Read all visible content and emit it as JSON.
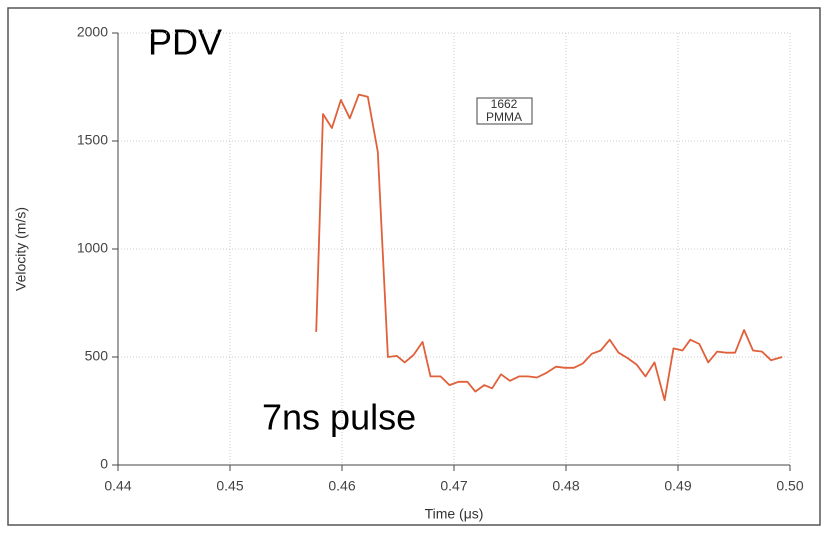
{
  "chart_data": {
    "type": "line",
    "title": "PDV",
    "annotations": [
      "7ns pulse"
    ],
    "box_label": [
      "1662",
      "PMMA"
    ],
    "xlabel": "Time (μs)",
    "ylabel": "Velocity (m/s)",
    "x": [
      0.4577,
      0.4583,
      0.4591,
      0.4599,
      0.4607,
      0.4615,
      0.4623,
      0.4632,
      0.4641,
      0.4649,
      0.4656,
      0.4664,
      0.4672,
      0.4679,
      0.4688,
      0.4696,
      0.4704,
      0.4712,
      0.4719,
      0.4727,
      0.4734,
      0.4742,
      0.475,
      0.4758,
      0.4766,
      0.4774,
      0.4782,
      0.4791,
      0.4799,
      0.4807,
      0.4815,
      0.4823,
      0.4831,
      0.4839,
      0.4847,
      0.4855,
      0.4863,
      0.4871,
      0.4879,
      0.4888,
      0.4896,
      0.4904,
      0.4911,
      0.4919,
      0.4927,
      0.4935,
      0.4943,
      0.4951,
      0.4959,
      0.4967,
      0.4975,
      0.4983,
      0.4993
    ],
    "series": [
      {
        "name": "PDV",
        "color": "#e0603a",
        "values": [
          616,
          1625,
          1560,
          1690,
          1605,
          1715,
          1705,
          1450,
          500,
          505,
          475,
          510,
          570,
          410,
          410,
          370,
          385,
          385,
          340,
          370,
          355,
          420,
          390,
          410,
          410,
          405,
          425,
          455,
          450,
          450,
          470,
          515,
          530,
          580,
          520,
          495,
          465,
          410,
          475,
          300,
          540,
          530,
          580,
          560,
          475,
          525,
          520,
          520,
          625,
          530,
          525,
          485,
          500
        ]
      }
    ],
    "xlim": [
      0.44,
      0.5
    ],
    "ylim": [
      0,
      2000
    ],
    "xticks": [
      0.44,
      0.45,
      0.46,
      0.47,
      0.48,
      0.49,
      {
        "value": 0.5,
        "label": "0.50"
      }
    ],
    "yticks": [
      0,
      500,
      1000,
      1500,
      2000
    ],
    "grid": true
  }
}
